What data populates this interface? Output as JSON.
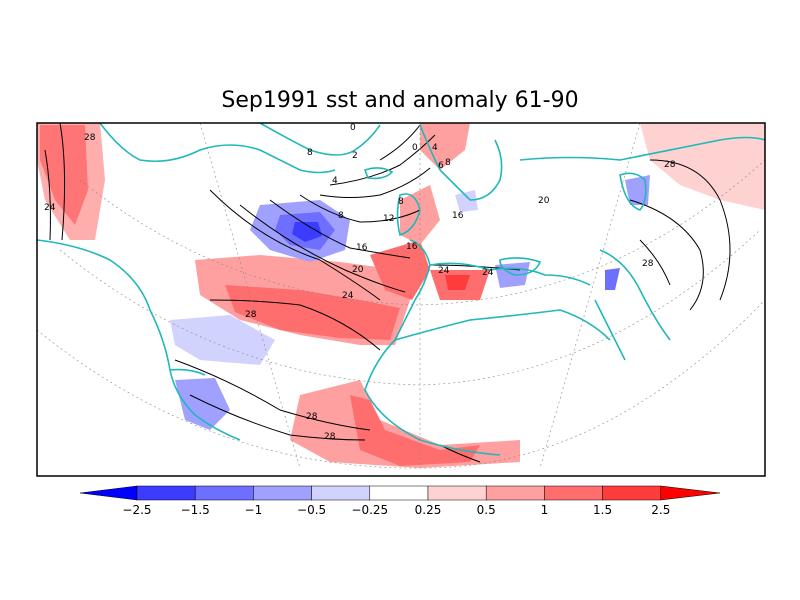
{
  "title": "Sep1991 sst and anomaly 61-90",
  "map": {
    "projection": "polar-stereographic",
    "region": "North Atlantic, Europe, Mediterranean, North Africa",
    "coastline_color": "#20B8B8",
    "contour_color": "#000000",
    "contour_labels": [
      "28",
      "24",
      "0",
      "4",
      "8",
      "4",
      "8",
      "12",
      "16",
      "16",
      "20",
      "24",
      "24",
      "24",
      "28",
      "28",
      "28",
      "28",
      "20",
      "28",
      "0",
      "6",
      "8",
      "16",
      "8",
      "2"
    ]
  },
  "colorbar": {
    "labels": [
      "-2.5",
      "-1.5",
      "-1",
      "-0.5",
      "-0.25",
      "0.25",
      "0.5",
      "1",
      "1.5",
      "2.5"
    ],
    "colors": [
      "#0000FF",
      "#3C3CFF",
      "#6E6EFF",
      "#A0A0FF",
      "#D2D2FF",
      "#FFFFFF",
      "#FFD2D2",
      "#FFA0A0",
      "#FF6E6E",
      "#FF3C3C",
      "#FF0000"
    ]
  }
}
